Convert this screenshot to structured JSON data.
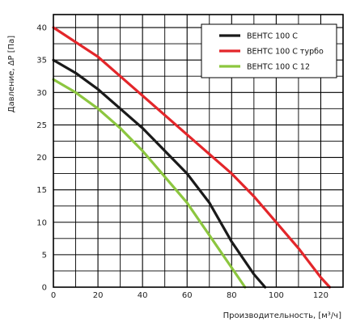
{
  "chart_data": {
    "type": "line",
    "xlabel": "Производительность, [м³/ч]",
    "ylabel": "Давление, ΔP [Па]",
    "xlim": [
      0,
      130
    ],
    "ylim": [
      0,
      42
    ],
    "xticks": [
      0,
      20,
      40,
      60,
      80,
      100,
      120
    ],
    "yticks": [
      0,
      5,
      10,
      15,
      20,
      25,
      30,
      35,
      40
    ],
    "x_grid_step": 10,
    "y_grid_step": 2.5,
    "grid": true,
    "legend_position": "top-right",
    "series": [
      {
        "name": "ВЕНТС 100 С",
        "color": "#1a1a1a",
        "points": [
          [
            0,
            35
          ],
          [
            10,
            33
          ],
          [
            20,
            30.5
          ],
          [
            30,
            27.5
          ],
          [
            40,
            24.5
          ],
          [
            50,
            21
          ],
          [
            60,
            17.5
          ],
          [
            70,
            13
          ],
          [
            80,
            7
          ],
          [
            90,
            2
          ],
          [
            95,
            0
          ]
        ]
      },
      {
        "name": "ВЕНТС 100 С турбо",
        "color": "#e3262a",
        "points": [
          [
            0,
            40
          ],
          [
            20,
            35.5
          ],
          [
            40,
            29.5
          ],
          [
            60,
            23.5
          ],
          [
            80,
            17.5
          ],
          [
            90,
            14
          ],
          [
            100,
            10
          ],
          [
            110,
            6
          ],
          [
            120,
            1.5
          ],
          [
            124,
            0
          ]
        ]
      },
      {
        "name": "ВЕНТС 100 С 12",
        "color": "#8cc63f",
        "points": [
          [
            0,
            32
          ],
          [
            10,
            30
          ],
          [
            20,
            27.5
          ],
          [
            30,
            24.5
          ],
          [
            40,
            21
          ],
          [
            50,
            17
          ],
          [
            60,
            13
          ],
          [
            70,
            8
          ],
          [
            80,
            3
          ],
          [
            86,
            0
          ]
        ]
      }
    ]
  }
}
